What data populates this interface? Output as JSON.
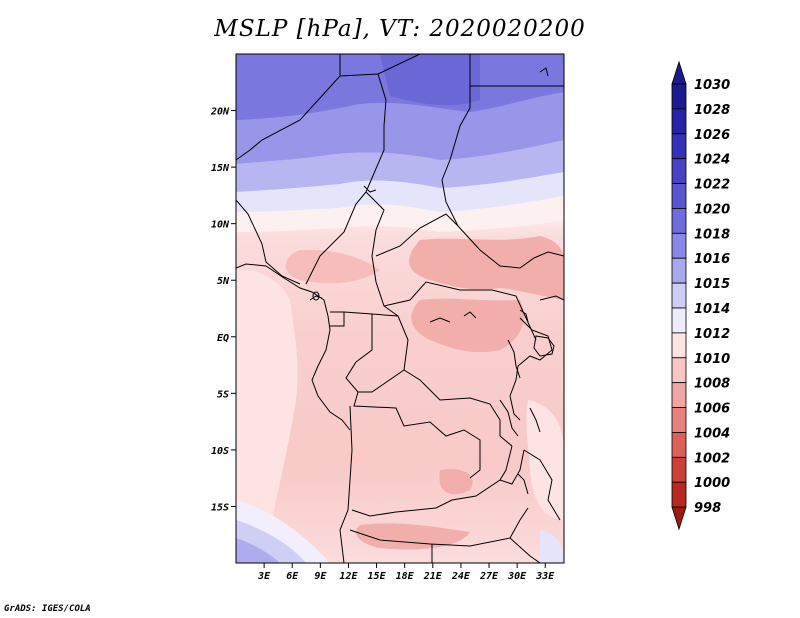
{
  "title": "MSLP [hPa], VT: 2020020200",
  "credit": "GrADS: IGES/COLA",
  "map": {
    "lon_range": [
      0,
      35
    ],
    "lat_range": [
      -20,
      25
    ],
    "lat_ticks": [
      {
        "value": 20,
        "label": "20N"
      },
      {
        "value": 15,
        "label": "15N"
      },
      {
        "value": 10,
        "label": "10N"
      },
      {
        "value": 5,
        "label": "5N"
      },
      {
        "value": 0,
        "label": "EQ"
      },
      {
        "value": -5,
        "label": "5S"
      },
      {
        "value": -10,
        "label": "10S"
      },
      {
        "value": -15,
        "label": "15S"
      }
    ],
    "lon_ticks": [
      {
        "value": 3,
        "label": "3E"
      },
      {
        "value": 6,
        "label": "6E"
      },
      {
        "value": 9,
        "label": "9E"
      },
      {
        "value": 12,
        "label": "12E"
      },
      {
        "value": 15,
        "label": "15E"
      },
      {
        "value": 18,
        "label": "18E"
      },
      {
        "value": 21,
        "label": "21E"
      },
      {
        "value": 24,
        "label": "24E"
      },
      {
        "value": 27,
        "label": "27E"
      },
      {
        "value": 30,
        "label": "30E"
      },
      {
        "value": 33,
        "label": "33E"
      }
    ]
  },
  "colorbar": {
    "levels": [
      {
        "label": "1030",
        "color": "#1b1a8e"
      },
      {
        "label": "1028",
        "color": "#2624a6"
      },
      {
        "label": "1026",
        "color": "#3331b8"
      },
      {
        "label": "1024",
        "color": "#4542c4"
      },
      {
        "label": "1022",
        "color": "#5956cf"
      },
      {
        "label": "1020",
        "color": "#6f6cdb"
      },
      {
        "label": "1018",
        "color": "#8a88e6"
      },
      {
        "label": "1016",
        "color": "#a9a8ef"
      },
      {
        "label": "1015",
        "color": "#cdcdf6"
      },
      {
        "label": "1014",
        "color": "#ececfb"
      },
      {
        "label": "1012",
        "color": "#fde3e2"
      },
      {
        "label": "1010",
        "color": "#f9c6c4"
      },
      {
        "label": "1008",
        "color": "#f1a6a3"
      },
      {
        "label": "1006",
        "color": "#e8827e"
      },
      {
        "label": "1004",
        "color": "#dd605b"
      },
      {
        "label": "1002",
        "color": "#cf3f39"
      },
      {
        "label": "1000",
        "color": "#b82820"
      },
      {
        "label": "998",
        "color": "#9e1a14"
      }
    ]
  }
}
